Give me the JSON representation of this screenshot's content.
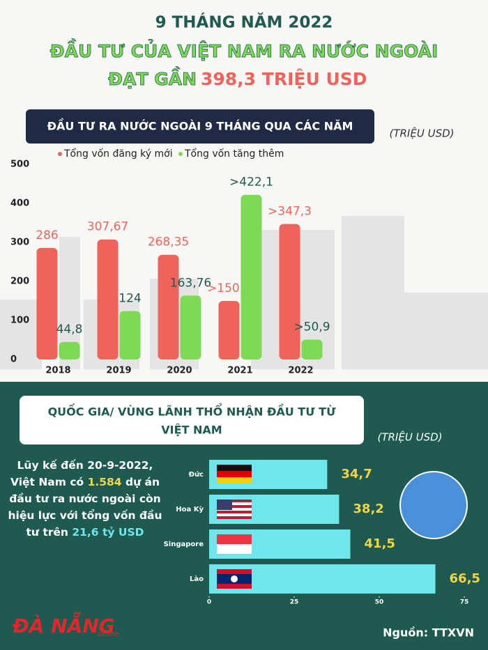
{
  "header": {
    "line1": "9 THÁNG NĂM 2022",
    "line2": "ĐẦU TƯ CỦA VIỆT NAM RA NƯỚC NGOÀI",
    "line3a": "ĐẠT GẦN",
    "line3b": "398,3 TRIỆU USD"
  },
  "chart_data": [
    {
      "type": "bar",
      "title": "ĐẦU TƯ RA NƯỚC NGOÀI 9 THÁNG QUA CÁC NĂM",
      "unit": "(TRIỆU USD)",
      "categories": [
        "2018",
        "2019",
        "2020",
        "2021",
        "2022"
      ],
      "series": [
        {
          "name": "Tổng vốn đăng ký mới",
          "color": "#f0635a",
          "values": [
            286,
            307.67,
            268.35,
            150.1,
            347.3
          ],
          "value_labels": [
            "286",
            "307,67",
            "268,35",
            ">150,1",
            ">347,3"
          ]
        },
        {
          "name": "Tổng vốn tăng thêm",
          "color": "#7ed957",
          "values": [
            44.8,
            124,
            163.76,
            422.1,
            50.9
          ],
          "value_labels": [
            "44,8",
            "124",
            "163,76",
            ">422,1",
            ">50,9"
          ]
        }
      ],
      "ylim": [
        0,
        500
      ],
      "yticks": [
        0,
        100,
        200,
        300,
        400,
        500
      ],
      "grid": false
    },
    {
      "type": "barh",
      "title_lines": [
        "QUỐC GIA/ VÙNG LÃNH THỔ NHẬN ĐẦU TƯ TỪ",
        "VIỆT NAM"
      ],
      "unit": "(TRIỆU USD)",
      "categories": [
        "Đức",
        "Hoa Kỳ",
        "Singapore",
        "Lào"
      ],
      "values": [
        34.7,
        38.2,
        41.5,
        66.5
      ],
      "value_labels": [
        "34,7",
        "38,2",
        "41,5",
        "66,5"
      ],
      "color": "#6fe6ec",
      "xlim": [
        0,
        75
      ],
      "xticks": [
        0,
        25,
        50,
        75
      ]
    }
  ],
  "note": [
    "Lũy kế đến 20-9-2022, Việt Nam có ",
    "1.584",
    " dự án đầu tư ra nước ngoài còn hiệu lực với tổng vốn đầu tư trên ",
    "21,6 tỷ USD"
  ],
  "footer": {
    "logo": "ĐÀ NẴNG",
    "logo_sub": "online",
    "source": "Nguồn: TTXVN"
  }
}
